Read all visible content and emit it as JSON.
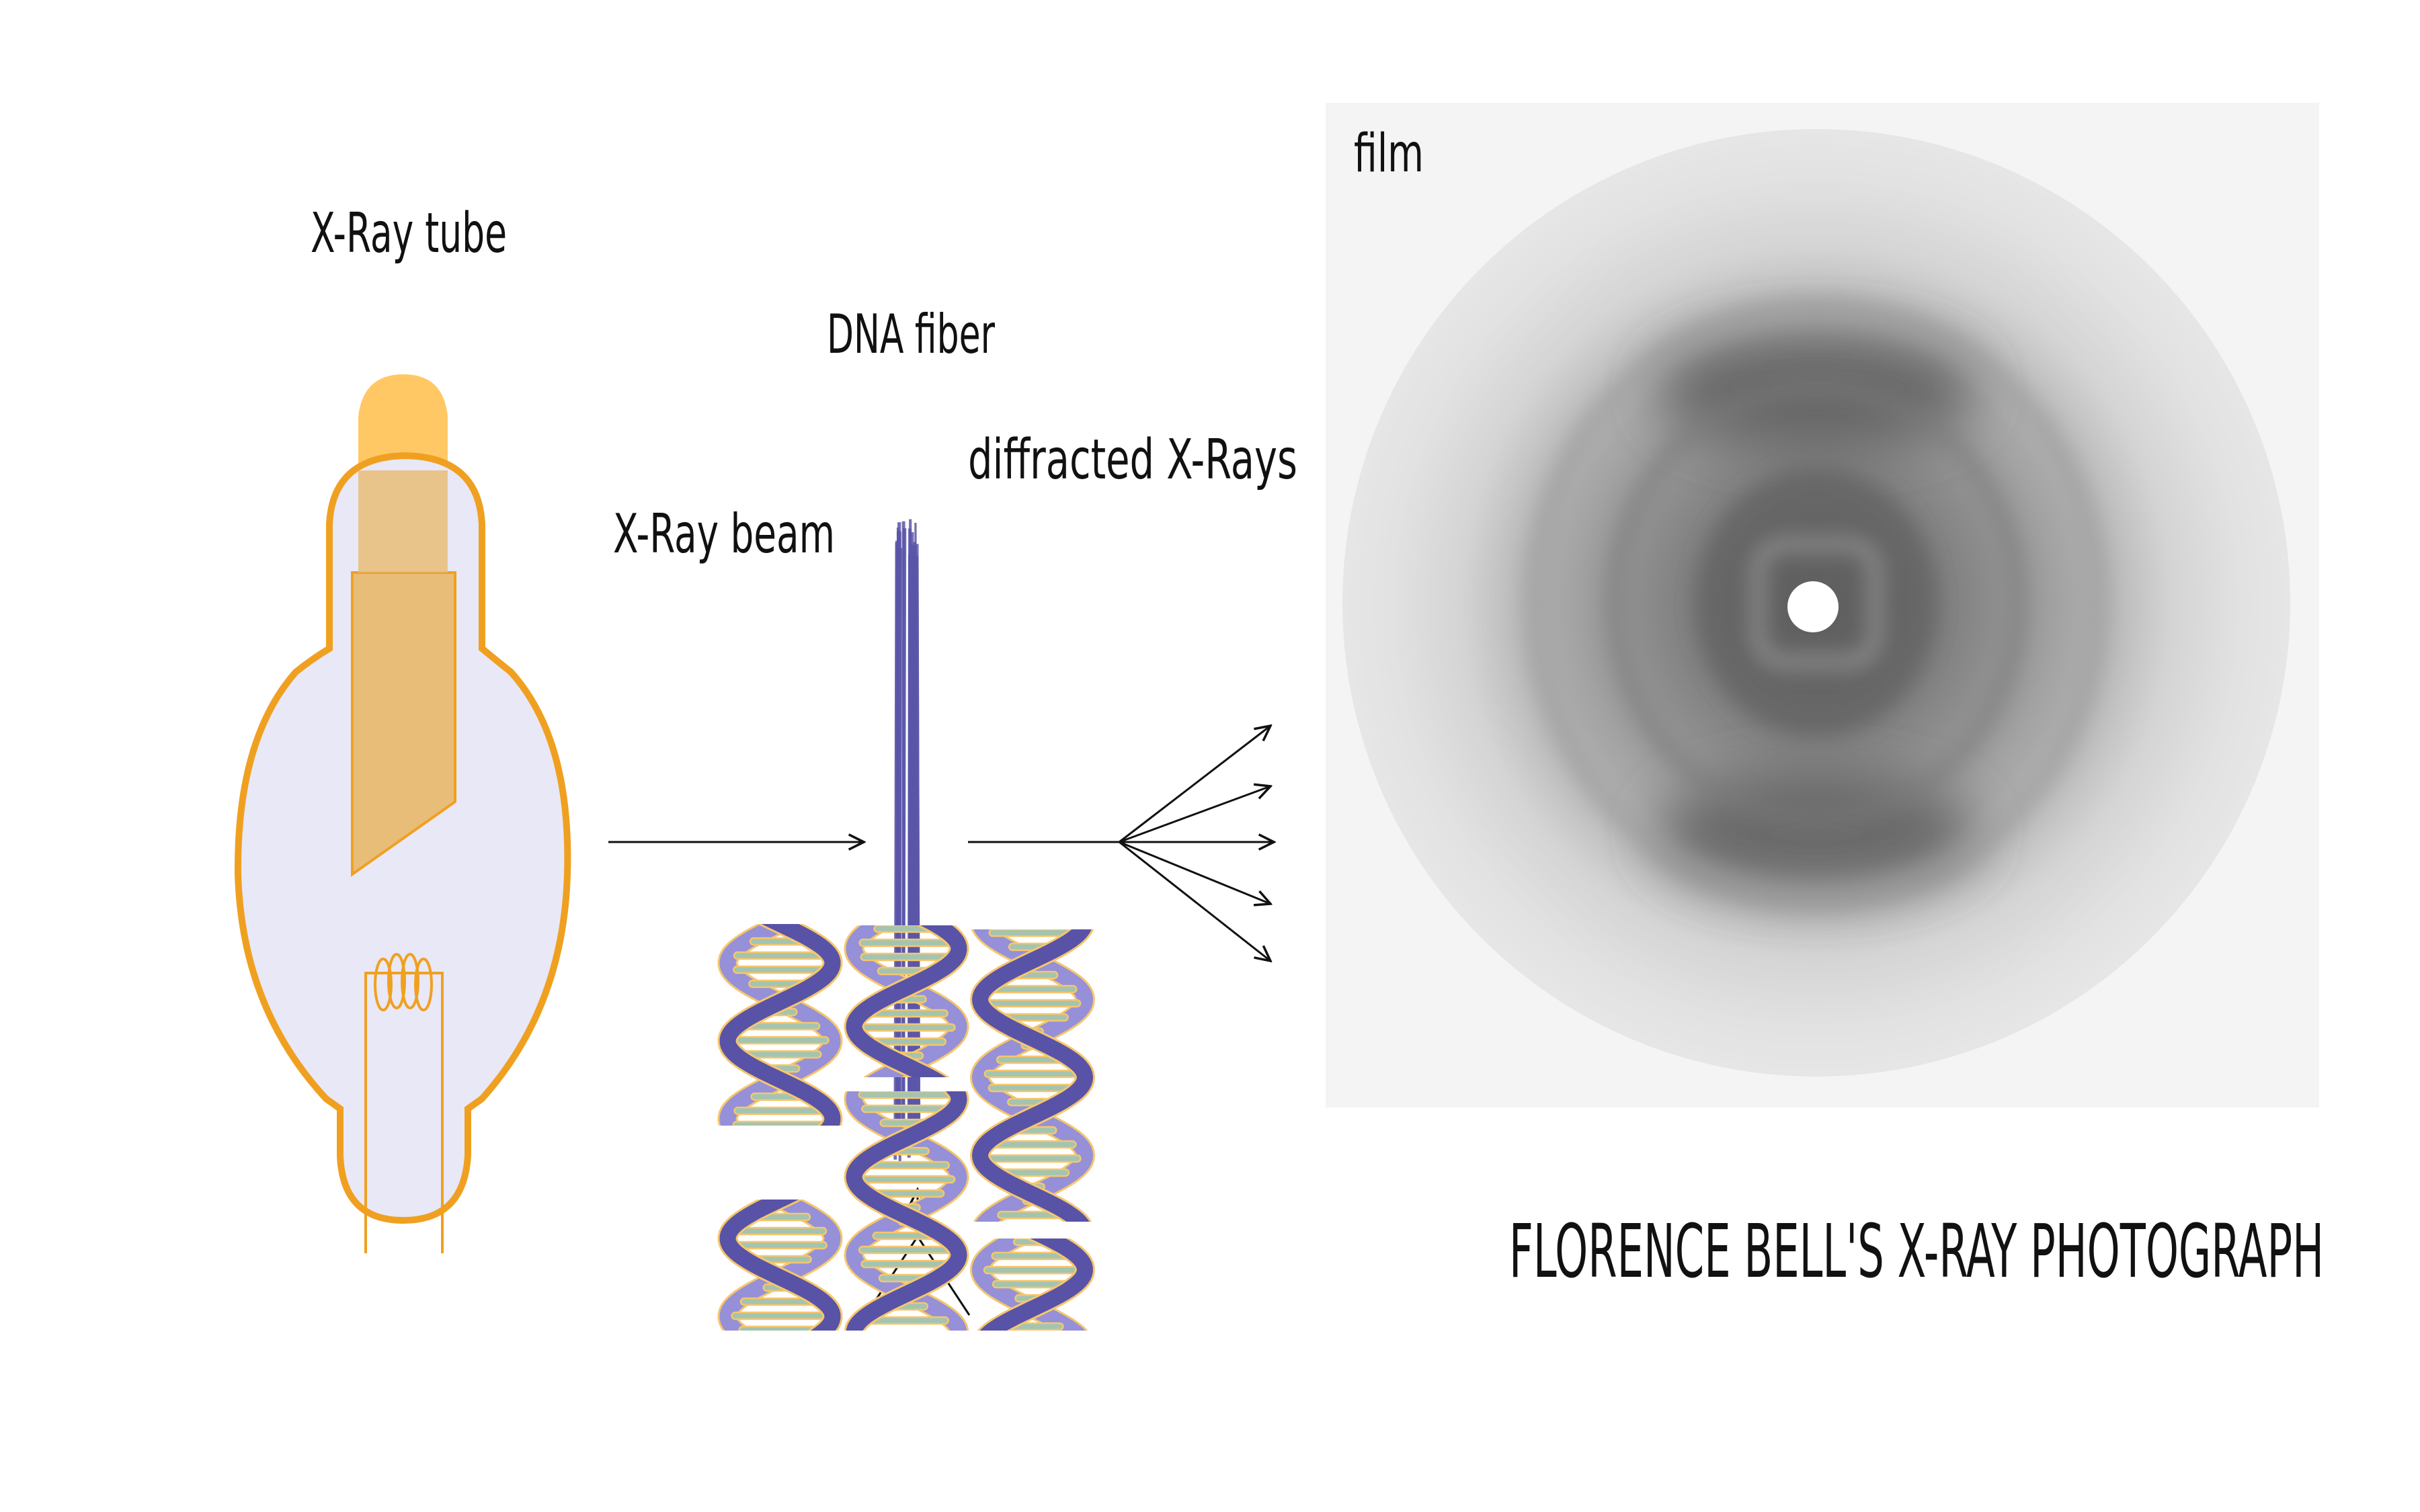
{
  "labels": {
    "xray_tube": "X-Ray tube",
    "xray_beam": "X-Ray beam",
    "dna_fiber": "DNA fiber",
    "diffracted": "diffracted X-Rays",
    "film": "film",
    "caption": "FLORENCE BELL'S X-RAY PHOTOGRAPH"
  },
  "colors": {
    "tube_outline": "#f0a020",
    "tube_glass": "#e8e8f6",
    "anode": "#e8bd78",
    "anode_cap": "#ffc864",
    "fiber": "#5a55a8",
    "helix_dark": "#5853a6",
    "helix_light": "#9590d8",
    "helix_rung": "#a3c4b0",
    "helix_outline": "#f6c66c",
    "ink": "#111111"
  }
}
